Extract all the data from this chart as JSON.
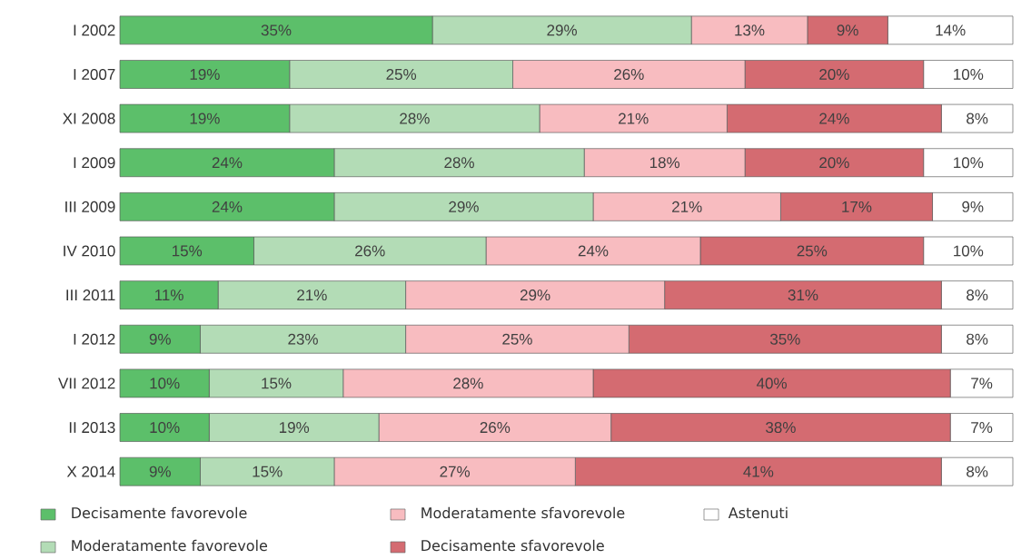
{
  "chart_data": {
    "type": "bar",
    "orientation": "horizontal",
    "stacked": true,
    "legend": "bottom",
    "categories": [
      "I 2002",
      "I 2007",
      "XI 2008",
      "I 2009",
      "III 2009",
      "IV 2010",
      "III 2011",
      "I 2012",
      "VII 2012",
      "II 2013",
      "X 2014"
    ],
    "series": [
      {
        "name": "Decisamente favorevole",
        "color": "#5cbf6a",
        "values": [
          35,
          19,
          19,
          24,
          24,
          15,
          11,
          9,
          10,
          10,
          9
        ],
        "value_labels": [
          "35%",
          "19%",
          "19%",
          "24%",
          "24%",
          "15%",
          "11%",
          "9%",
          "10%",
          "10%",
          "9%"
        ]
      },
      {
        "name": "Moderatamente favorevole",
        "color": "#b3dcb6",
        "values": [
          29,
          25,
          28,
          28,
          29,
          26,
          21,
          23,
          15,
          19,
          15
        ],
        "value_labels": [
          "29%",
          "25%",
          "28%",
          "28%",
          "29%",
          "26%",
          "21%",
          "23%",
          "15%",
          "19%",
          "15%"
        ]
      },
      {
        "name": "Moderatamente sfavorevole",
        "color": "#f8bcc0",
        "values": [
          13,
          26,
          21,
          18,
          21,
          24,
          29,
          25,
          28,
          26,
          27
        ],
        "value_labels": [
          "13%",
          "26%",
          "21%",
          "18%",
          "21%",
          "24%",
          "29%",
          "25%",
          "28%",
          "26%",
          "27%"
        ]
      },
      {
        "name": "Decisamente sfavorevole",
        "color": "#d46b71",
        "values": [
          9,
          20,
          24,
          20,
          17,
          25,
          31,
          35,
          40,
          38,
          41
        ],
        "value_labels": [
          "9%",
          "20%",
          "24%",
          "20%",
          "17%",
          "25%",
          "31%",
          "35%",
          "40%",
          "38%",
          "41%"
        ]
      },
      {
        "name": "Astenuti",
        "color": "#ffffff",
        "values": [
          14,
          10,
          8,
          10,
          9,
          10,
          8,
          8,
          7,
          7,
          8
        ],
        "value_labels": [
          "14%",
          "10%",
          "8%",
          "10%",
          "9%",
          "10%",
          "8%",
          "8%",
          "7%",
          "7%",
          "8%"
        ]
      }
    ]
  }
}
